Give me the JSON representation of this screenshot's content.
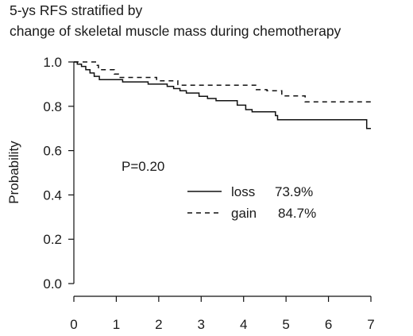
{
  "chart_data": {
    "type": "line",
    "title_lines": [
      "5-ys RFS stratified by",
      "change of skeletal muscle mass during chemotherapy"
    ],
    "xlabel": "",
    "ylabel": "Probability",
    "xlim": [
      0,
      7
    ],
    "ylim": [
      0,
      1
    ],
    "x_ticks": [
      "0",
      "1",
      "2",
      "3",
      "4",
      "5",
      "6",
      "7"
    ],
    "y_ticks": [
      "0.0",
      "0.2",
      "0.4",
      "0.6",
      "0.8",
      "1.0"
    ],
    "annotation": "P=0.20",
    "grid": false,
    "legend_position": "center-right",
    "series": [
      {
        "name": "loss",
        "value_label": "73.9%",
        "line_style": "solid",
        "color": "#111111",
        "steps": [
          [
            0.0,
            1.0
          ],
          [
            0.08,
            0.99
          ],
          [
            0.18,
            0.98
          ],
          [
            0.28,
            0.965
          ],
          [
            0.38,
            0.95
          ],
          [
            0.48,
            0.935
          ],
          [
            0.6,
            0.92
          ],
          [
            1.15,
            0.91
          ],
          [
            1.75,
            0.9
          ],
          [
            2.2,
            0.89
          ],
          [
            2.35,
            0.88
          ],
          [
            2.5,
            0.87
          ],
          [
            2.65,
            0.86
          ],
          [
            2.95,
            0.845
          ],
          [
            3.15,
            0.835
          ],
          [
            3.35,
            0.825
          ],
          [
            3.85,
            0.805
          ],
          [
            4.05,
            0.785
          ],
          [
            4.2,
            0.775
          ],
          [
            4.75,
            0.758
          ],
          [
            4.8,
            0.739
          ],
          [
            6.85,
            0.739
          ],
          [
            6.9,
            0.7
          ],
          [
            7.0,
            0.7
          ]
        ]
      },
      {
        "name": "gain",
        "value_label": "84.7%",
        "line_style": "dashed",
        "color": "#111111",
        "steps": [
          [
            0.0,
            1.0
          ],
          [
            0.55,
            0.985
          ],
          [
            0.58,
            0.965
          ],
          [
            0.95,
            0.945
          ],
          [
            1.05,
            0.93
          ],
          [
            1.95,
            0.915
          ],
          [
            2.45,
            0.895
          ],
          [
            4.3,
            0.875
          ],
          [
            4.55,
            0.87
          ],
          [
            4.9,
            0.847
          ],
          [
            5.45,
            0.82
          ],
          [
            6.95,
            0.82
          ],
          [
            7.0,
            0.82
          ]
        ]
      }
    ]
  }
}
